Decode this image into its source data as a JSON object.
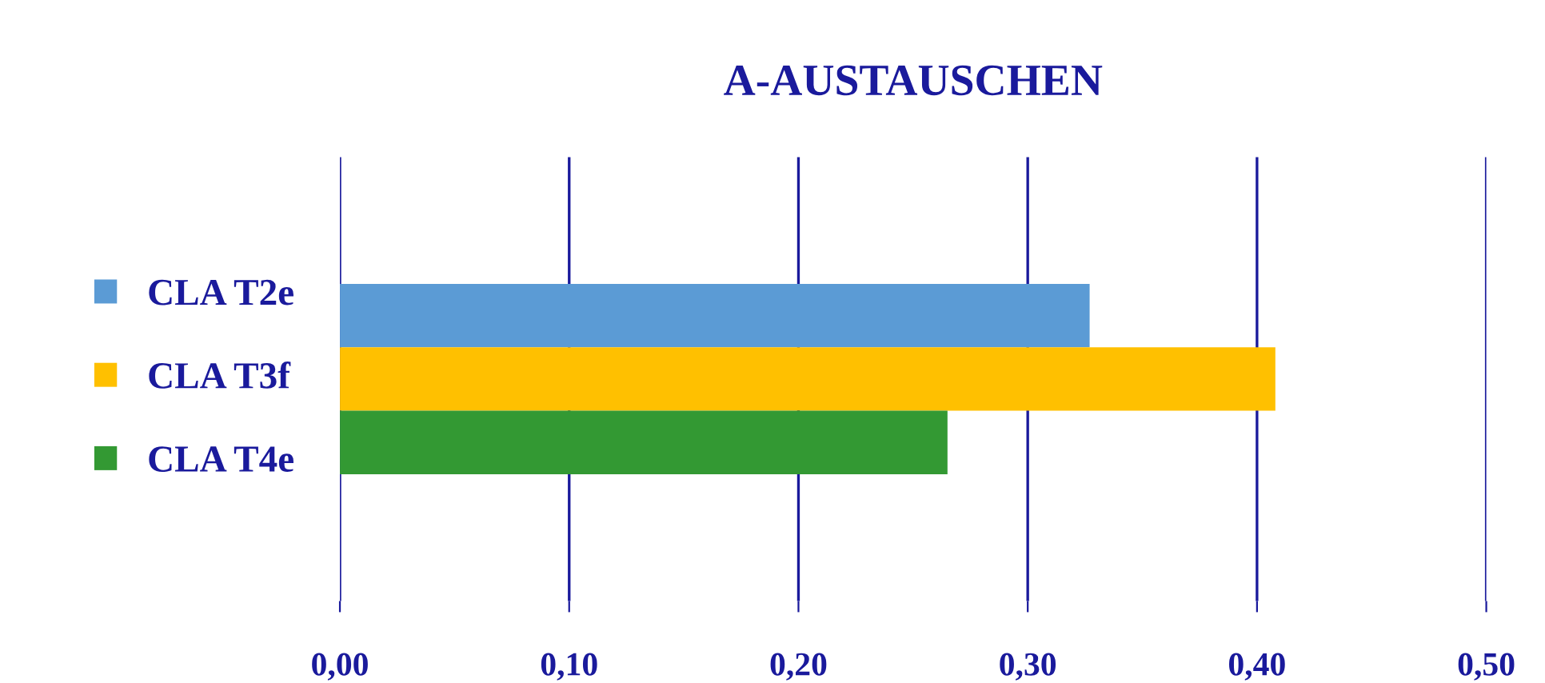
{
  "chart_data": {
    "type": "bar",
    "orientation": "horizontal",
    "title": "A-AUSTAUSCHEN",
    "categories": [
      null
    ],
    "series": [
      {
        "name": "CLA T2e",
        "color": "#5b9bd5",
        "values": [
          0.327
        ]
      },
      {
        "name": "CLA T3f",
        "color": "#ffc000",
        "values": [
          0.408
        ]
      },
      {
        "name": "CLA T4e",
        "color": "#339933",
        "values": [
          0.265
        ]
      }
    ],
    "xlim": [
      0,
      0.5
    ],
    "xticks": [
      {
        "value": 0,
        "label": "0,00"
      },
      {
        "value": 0.1,
        "label": "0,10"
      },
      {
        "value": 0.2,
        "label": "0,20"
      },
      {
        "value": 0.3,
        "label": "0,30"
      },
      {
        "value": 0.4,
        "label": "0,40"
      },
      {
        "value": 0.5,
        "label": "0,50"
      }
    ],
    "grid": "x",
    "legend": "left"
  }
}
